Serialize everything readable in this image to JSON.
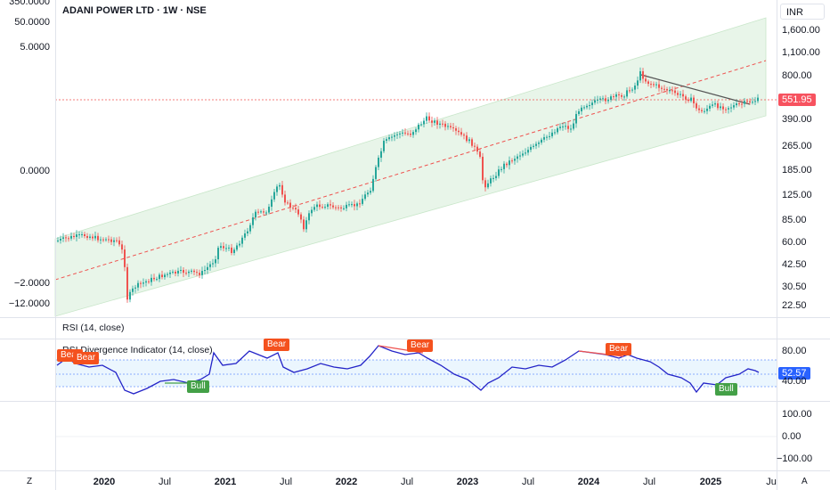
{
  "chart": {
    "title": "ADANI POWER LTD · 1W · NSE",
    "currency_label": "INR",
    "current_price": "551.95",
    "price_axis_ticks": [
      "1,600.00",
      "1,100.00",
      "800.00",
      "551.95",
      "390.00",
      "265.00",
      "185.00",
      "125.00",
      "85.00",
      "60.00",
      "42.50",
      "30.50",
      "22.50"
    ],
    "left_axis_ticks": [
      "350.0000",
      "50.0000",
      "5.0000",
      "0.0000",
      "−2.0000",
      "−12.0000"
    ],
    "time_ticks": [
      {
        "label": "2020",
        "bold": true
      },
      {
        "label": "Jul",
        "bold": false
      },
      {
        "label": "2021",
        "bold": true
      },
      {
        "label": "Jul",
        "bold": false
      },
      {
        "label": "2022",
        "bold": true
      },
      {
        "label": "Jul",
        "bold": false
      },
      {
        "label": "2023",
        "bold": true
      },
      {
        "label": "Jul",
        "bold": false
      },
      {
        "label": "2024",
        "bold": true
      },
      {
        "label": "Jul",
        "bold": false
      },
      {
        "label": "2025",
        "bold": true
      },
      {
        "label": "Ju",
        "bold": false
      }
    ],
    "corner_left": "Z",
    "corner_right": "A",
    "colors": {
      "up": "#26a69a",
      "down": "#ef5350",
      "channel_fill": "#e8f5e9",
      "rsi_line": "#2424c8",
      "bear": "#f4511e",
      "bull": "#43a047",
      "price_tag": "#f7525f",
      "rsi_tag": "#2962ff"
    }
  },
  "rsi_pane": {
    "label": "RSI (14, close)",
    "divergence_label": "RSI Divergence Indicator (14, close)",
    "axis_ticks": [
      "80.00",
      "40.00"
    ],
    "current_value": "52.57",
    "badges": {
      "bear_1": "Bear",
      "bear_2": "Bear",
      "bear_3": "Bear",
      "bear_4": "Bear",
      "bear_5": "Bear",
      "bull_1": "Bull",
      "bull_2": "Bull"
    }
  },
  "third_pane": {
    "axis_ticks": [
      "100.00",
      "0.00",
      "−100.00"
    ]
  }
}
